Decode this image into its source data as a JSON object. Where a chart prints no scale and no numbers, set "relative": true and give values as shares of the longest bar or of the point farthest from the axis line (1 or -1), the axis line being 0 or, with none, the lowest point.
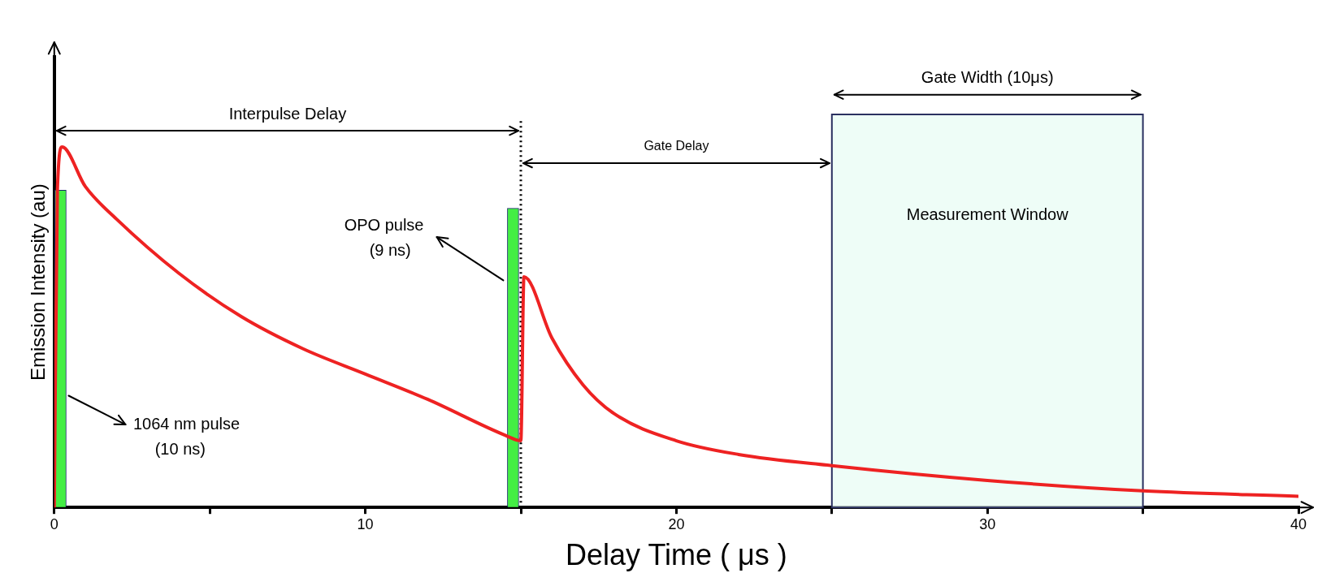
{
  "chart_data": {
    "type": "line",
    "relative": true,
    "xlabel": "Delay Time ( μs )",
    "ylabel": "Emission Intensity (au)",
    "xlim": [
      0,
      40
    ],
    "xticks": [
      0,
      {
        "value": 5,
        "label": null
      },
      10,
      {
        "value": 15,
        "label": null
      },
      20,
      {
        "value": 25,
        "label": null
      },
      30,
      {
        "value": 35,
        "label": null
      },
      40
    ],
    "series": [
      {
        "type": "bar",
        "color": "#44ee44",
        "x": [
          0.2,
          14.75
        ],
        "values": [
          0.88,
          0.83
        ]
      },
      {
        "color": "#ee2222",
        "x": [
          0,
          0.1,
          0.25,
          1,
          2,
          4,
          6,
          8,
          10,
          12,
          14.5,
          15,
          15.1,
          16,
          17,
          18,
          20,
          22,
          25,
          30,
          35,
          40
        ],
        "values": [
          0,
          0.88,
          1,
          0.89,
          0.8,
          0.65,
          0.53,
          0.44,
          0.37,
          0.3,
          0.2,
          0.185,
          0.64,
          0.47,
          0.34,
          0.26,
          0.185,
          0.147,
          0.116,
          0.075,
          0.046,
          0.031
        ]
      }
    ],
    "ref_lines": [
      {
        "axis": "x",
        "value": 15,
        "label": null,
        "line_style": "dotted"
      }
    ],
    "bands": [
      {
        "axis": "x",
        "from": 25,
        "to": 35,
        "label": "Measurement Window",
        "color": "#e8fcf4"
      }
    ],
    "annotations": [
      "Interpulse Delay",
      "Gate Delay",
      "Gate Width (10μs)",
      "OPO pulse",
      "(9 ns)",
      "1064 nm pulse",
      "(10 ns)"
    ],
    "grid": false,
    "legend": false,
    "marker": "none",
    "line_style": "solid"
  }
}
